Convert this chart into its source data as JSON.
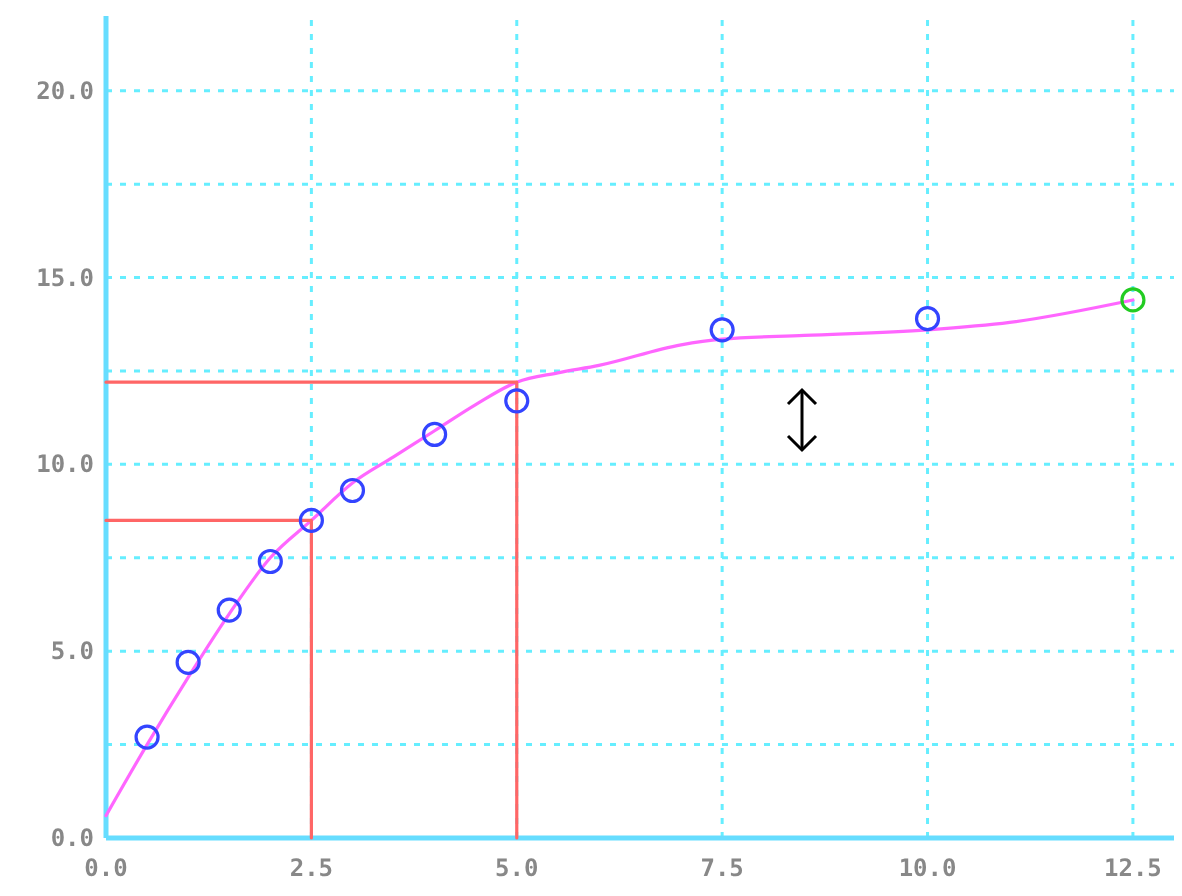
{
  "chart_data": {
    "type": "scatter",
    "xlim": [
      0,
      13
    ],
    "ylim": [
      0,
      22
    ],
    "xticks": [
      {
        "value": 0,
        "label": "0.0"
      },
      {
        "value": 2.5,
        "label": "2.5"
      },
      {
        "value": 5,
        "label": "5.0"
      },
      {
        "value": 7.5,
        "label": "7.5"
      },
      {
        "value": 10,
        "label": "10.0"
      },
      {
        "value": 12.5,
        "label": "12.5"
      }
    ],
    "yticks": [
      {
        "value": 0,
        "label": "0.0"
      },
      {
        "value": 2.5,
        "label": null
      },
      {
        "value": 5,
        "label": "5.0"
      },
      {
        "value": 7.5,
        "label": null
      },
      {
        "value": 10,
        "label": "10.0"
      },
      {
        "value": 12.5,
        "label": null
      },
      {
        "value": 15,
        "label": "15.0"
      },
      {
        "value": 17.5,
        "label": null
      },
      {
        "value": 20,
        "label": "20.0"
      }
    ],
    "grid": true,
    "series": [
      {
        "type": "line",
        "color": "#ff66ff",
        "line_style": "solid",
        "marker": "none",
        "x": [
          0,
          0.5,
          1,
          1.5,
          2,
          2.5,
          3,
          3.5,
          4,
          4.5,
          5,
          5.5,
          6,
          7,
          7.5,
          8.5,
          10,
          11,
          12.5
        ],
        "values": [
          0.6,
          2.5,
          4.3,
          6.0,
          7.5,
          8.5,
          9.5,
          10.2,
          10.9,
          11.6,
          12.2,
          12.45,
          12.65,
          13.2,
          13.35,
          13.45,
          13.6,
          13.8,
          14.4
        ]
      },
      {
        "type": "line",
        "color": "#ff6666",
        "line_style": "solid",
        "marker": "none",
        "x": [
          0,
          2.5,
          2.5
        ],
        "values": [
          8.5,
          8.5,
          0
        ]
      },
      {
        "type": "line",
        "color": "#ff6666",
        "line_style": "solid",
        "marker": "none",
        "x": [
          0,
          5,
          5
        ],
        "values": [
          12.2,
          12.2,
          0
        ]
      },
      {
        "color": "#3344ff",
        "marker": "circle",
        "x": [
          0.5,
          1,
          1.5,
          2,
          2.5,
          3,
          4,
          5,
          7.5,
          10
        ],
        "values": [
          2.7,
          4.7,
          6.1,
          7.4,
          8.5,
          9.3,
          10.8,
          11.7,
          13.6,
          13.9
        ]
      },
      {
        "color": "#22cc22",
        "marker": "circle",
        "x": [
          12.5
        ],
        "values": [
          14.4
        ]
      }
    ]
  }
}
